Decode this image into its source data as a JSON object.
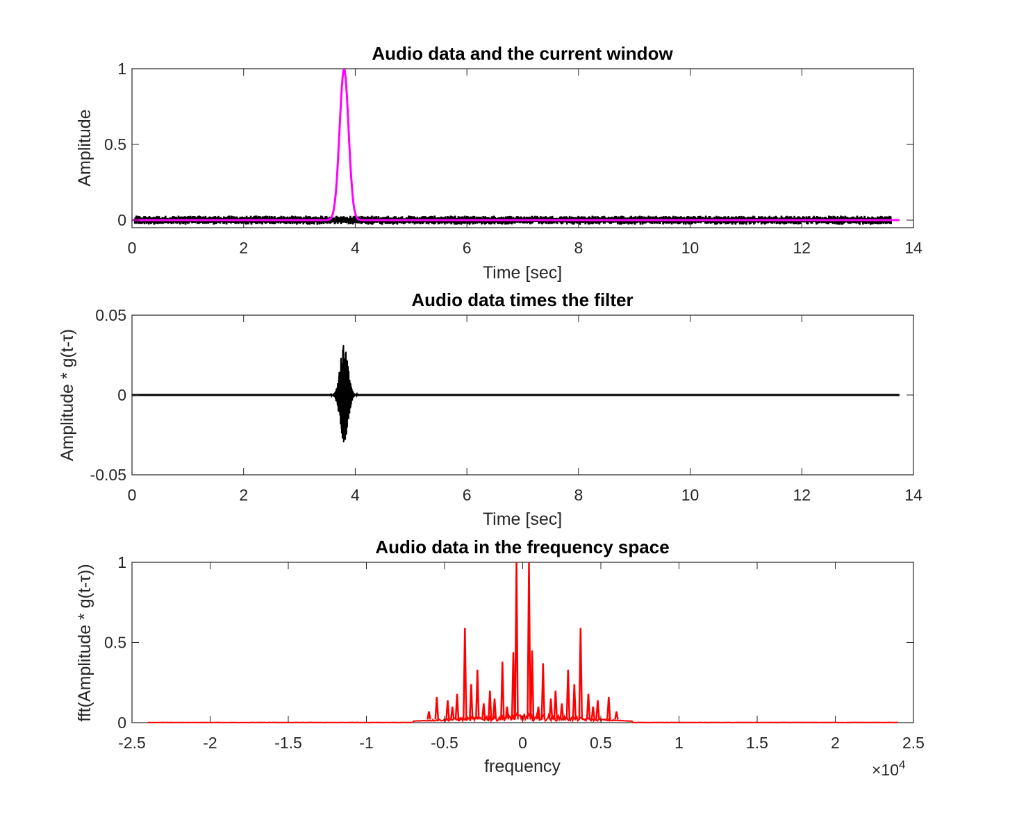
{
  "chart_data": [
    {
      "type": "line",
      "title": "Audio data and the current window",
      "xlabel": "Time [sec]",
      "ylabel": "Amplitude",
      "xlim": [
        0,
        14
      ],
      "ylim": [
        -0.05,
        1
      ],
      "xticks": [
        0,
        2,
        4,
        6,
        8,
        10,
        12,
        14
      ],
      "xticklabels": [
        "0",
        "2",
        "4",
        "6",
        "8",
        "10",
        "12",
        "14"
      ],
      "yticks": [
        0,
        0.5,
        1
      ],
      "yticklabels": [
        "0",
        "0.5",
        "1"
      ],
      "series": [
        {
          "kind": "audio signal",
          "color": "#000000",
          "x_range": [
            0.05,
            13.6
          ],
          "amplitude_envelope": 0.03
        },
        {
          "kind": "gaussian window",
          "color": "#ff00ff",
          "center": 3.8,
          "peak": 1,
          "sigma": 0.08,
          "x_range": [
            0,
            13.75
          ]
        }
      ]
    },
    {
      "type": "line",
      "title": "Audio data times the filter",
      "xlabel": "Time [sec]",
      "ylabel": "Amplitude * g(t-τ)",
      "xlim": [
        0,
        14
      ],
      "ylim": [
        -0.05,
        0.05
      ],
      "xticks": [
        0,
        2,
        4,
        6,
        8,
        10,
        12,
        14
      ],
      "xticklabels": [
        "0",
        "2",
        "4",
        "6",
        "8",
        "10",
        "12",
        "14"
      ],
      "yticks": [
        -0.05,
        0,
        0.05
      ],
      "yticklabels": [
        "-0.05",
        "0",
        "0.05"
      ],
      "series": [
        {
          "kind": "filtered signal",
          "color": "#000000",
          "x_range": [
            0,
            13.75
          ],
          "burst_center": 3.8,
          "burst_peak": 0.032,
          "burst_sigma": 0.07
        }
      ]
    },
    {
      "type": "line",
      "title": "Audio data in the frequency space",
      "xlabel": "frequency",
      "ylabel": "fft(Amplitude * g(t-τ))",
      "xlim": [
        -2.5,
        2.5
      ],
      "ylim": [
        0,
        1
      ],
      "x_exponent_label": "×10",
      "x_exponent_power": "4",
      "xticks": [
        -2.5,
        -2,
        -1.5,
        -1,
        -0.5,
        0,
        0.5,
        1,
        1.5,
        2,
        2.5
      ],
      "xticklabels": [
        "-2.5",
        "-2",
        "-1.5",
        "-1",
        "-0.5",
        "0",
        "0.5",
        "1",
        "1.5",
        "2",
        "2.5"
      ],
      "yticks": [
        0,
        0.5,
        1
      ],
      "yticklabels": [
        "0",
        "0.5",
        "1"
      ],
      "series": [
        {
          "kind": "spectrum",
          "color": "#ff0000",
          "x_range": [
            -2.4,
            2.4
          ],
          "peaks": [
            {
              "x": -0.04,
              "y": 1.0
            },
            {
              "x": 0.04,
              "y": 1.0
            },
            {
              "x": -0.37,
              "y": 0.59
            },
            {
              "x": 0.37,
              "y": 0.59
            },
            {
              "x": -0.06,
              "y": 0.44
            },
            {
              "x": 0.06,
              "y": 0.45
            },
            {
              "x": -0.13,
              "y": 0.38
            },
            {
              "x": 0.13,
              "y": 0.37
            },
            {
              "x": -0.29,
              "y": 0.33
            },
            {
              "x": 0.29,
              "y": 0.33
            },
            {
              "x": -0.33,
              "y": 0.24
            },
            {
              "x": 0.33,
              "y": 0.24
            },
            {
              "x": -0.21,
              "y": 0.2
            },
            {
              "x": 0.21,
              "y": 0.2
            },
            {
              "x": -0.42,
              "y": 0.18
            },
            {
              "x": 0.42,
              "y": 0.18
            },
            {
              "x": -0.55,
              "y": 0.16
            },
            {
              "x": 0.55,
              "y": 0.16
            },
            {
              "x": -0.18,
              "y": 0.15
            },
            {
              "x": 0.18,
              "y": 0.15
            },
            {
              "x": -0.48,
              "y": 0.14
            },
            {
              "x": 0.48,
              "y": 0.14
            },
            {
              "x": -0.25,
              "y": 0.12
            },
            {
              "x": 0.25,
              "y": 0.12
            },
            {
              "x": -0.1,
              "y": 0.1
            },
            {
              "x": 0.1,
              "y": 0.1
            },
            {
              "x": -0.45,
              "y": 0.1
            },
            {
              "x": 0.45,
              "y": 0.1
            },
            {
              "x": -0.6,
              "y": 0.07
            },
            {
              "x": 0.6,
              "y": 0.07
            }
          ],
          "noise_floor_extent": [
            -0.7,
            0.7
          ]
        }
      ]
    }
  ]
}
